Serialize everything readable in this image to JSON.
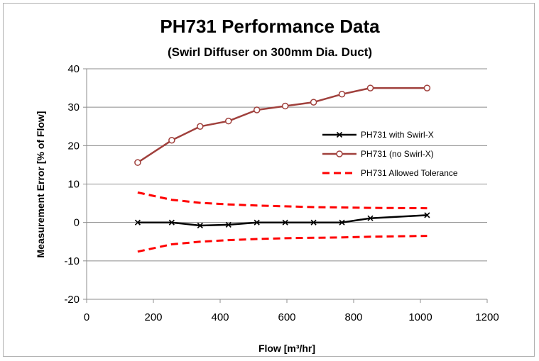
{
  "chart_data": {
    "type": "line",
    "title": "PH731 Performance Data",
    "subtitle": "(Swirl Diffuser on 300mm Dia. Duct)",
    "xlabel": "Flow [m³/hr]",
    "ylabel": "Measurement Error [% of Flow]",
    "xlim": [
      0,
      1200
    ],
    "ylim": [
      -20,
      40
    ],
    "xticks": [
      0,
      200,
      400,
      600,
      800,
      1000,
      1200
    ],
    "yticks": [
      -20,
      -10,
      0,
      10,
      20,
      30,
      40
    ],
    "grid": "horizontal",
    "legend_position": "right",
    "series": [
      {
        "name": "PH731 with Swirl-X",
        "color": "#000000",
        "marker": "x",
        "line": "solid",
        "x": [
          153,
          255,
          340,
          425,
          510,
          595,
          680,
          765,
          850,
          1020
        ],
        "y": [
          0,
          0,
          -0.8,
          -0.6,
          0,
          0,
          0,
          0,
          1.1,
          1.9
        ]
      },
      {
        "name": "PH731 (no Swirl-X)",
        "color": "#a0403c",
        "marker": "circle",
        "line": "solid",
        "x": [
          153,
          255,
          340,
          425,
          510,
          595,
          680,
          765,
          850,
          1020
        ],
        "y": [
          15.6,
          21.4,
          25.0,
          26.4,
          29.3,
          30.3,
          31.3,
          33.4,
          35.0,
          35.0
        ]
      },
      {
        "name": "PH731 Allowed Tolerance",
        "color": "#ff0000",
        "marker": "none",
        "line": "dashed",
        "x": [
          153,
          255,
          340,
          425,
          510,
          595,
          680,
          765,
          850,
          1020
        ],
        "y": [
          7.8,
          5.9,
          5.1,
          4.7,
          4.4,
          4.2,
          4.0,
          3.9,
          3.8,
          3.7
        ]
      },
      {
        "name": "",
        "color": "#ff0000",
        "marker": "none",
        "line": "dashed",
        "x": [
          153,
          255,
          340,
          425,
          510,
          595,
          680,
          765,
          850,
          1020
        ],
        "y": [
          -7.6,
          -5.7,
          -5.0,
          -4.6,
          -4.3,
          -4.1,
          -4.0,
          -3.9,
          -3.7,
          -3.5
        ]
      }
    ]
  }
}
